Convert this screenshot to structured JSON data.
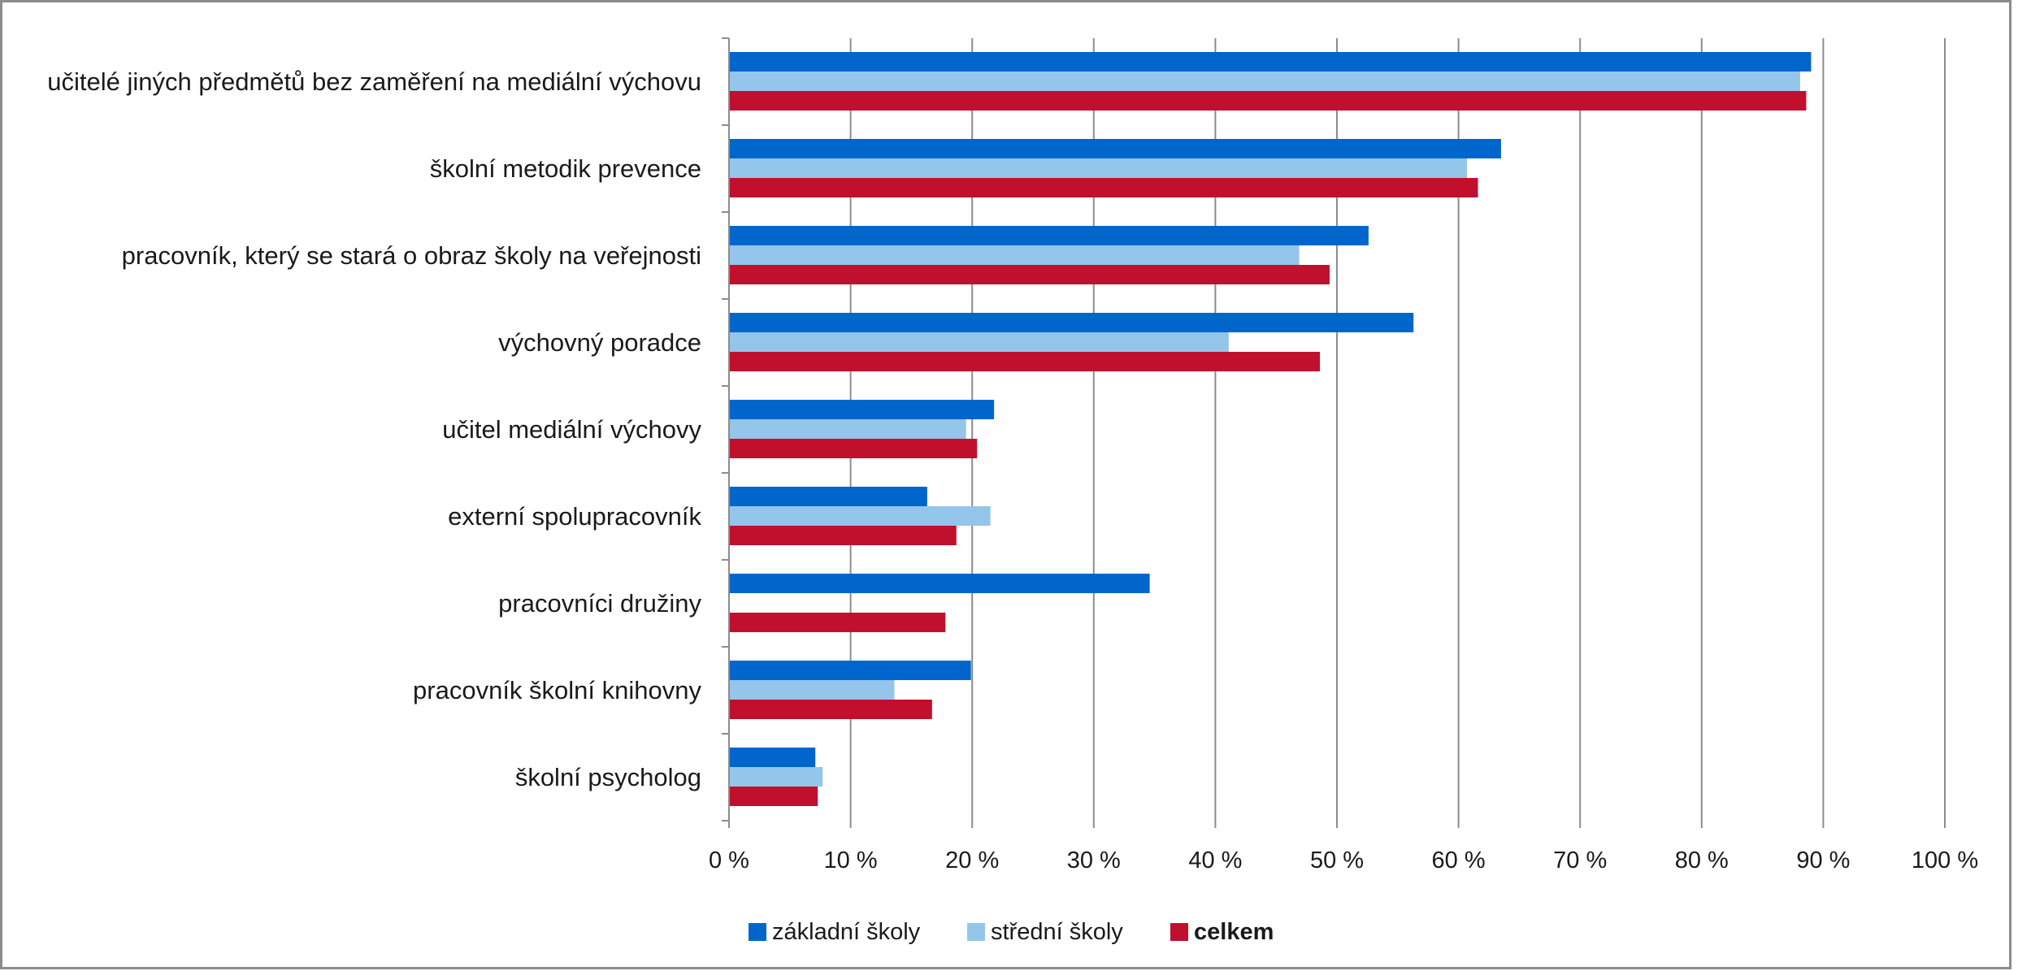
{
  "chart_data": {
    "type": "bar",
    "orientation": "horizontal",
    "title": "",
    "xlabel": "",
    "ylabel": "",
    "xlim": [
      0,
      100
    ],
    "grid": true,
    "legend_position": "bottom",
    "categories": [
      "učitelé jiných předmětů bez zaměření na mediální výchovu",
      "školní metodik prevence",
      "pracovník, který se stará o obraz školy na veřejnosti",
      "výchovný poradce",
      "učitel mediální výchovy",
      "externí spolupracovník",
      "pracovníci družiny",
      "pracovník školní knihovny",
      "školní psycholog"
    ],
    "ticks": [
      "0 %",
      "10 %",
      "20 %",
      "30 %",
      "40 %",
      "50 %",
      "60 %",
      "70 %",
      "80 %",
      "90 %",
      "100 %"
    ],
    "series": [
      {
        "name": "základní školy",
        "color": "#0066cc",
        "values": [
          89.0,
          63.5,
          52.6,
          56.3,
          21.8,
          16.3,
          34.6,
          19.9,
          7.1
        ]
      },
      {
        "name": "střední školy",
        "color": "#93c6ea",
        "values": [
          88.1,
          60.7,
          46.9,
          41.1,
          19.5,
          21.5,
          null,
          13.6,
          7.7
        ]
      },
      {
        "name": "celkem",
        "color": "#c0102e",
        "values": [
          88.6,
          61.6,
          49.4,
          48.6,
          20.4,
          18.7,
          17.8,
          16.7,
          7.3
        ]
      }
    ]
  }
}
